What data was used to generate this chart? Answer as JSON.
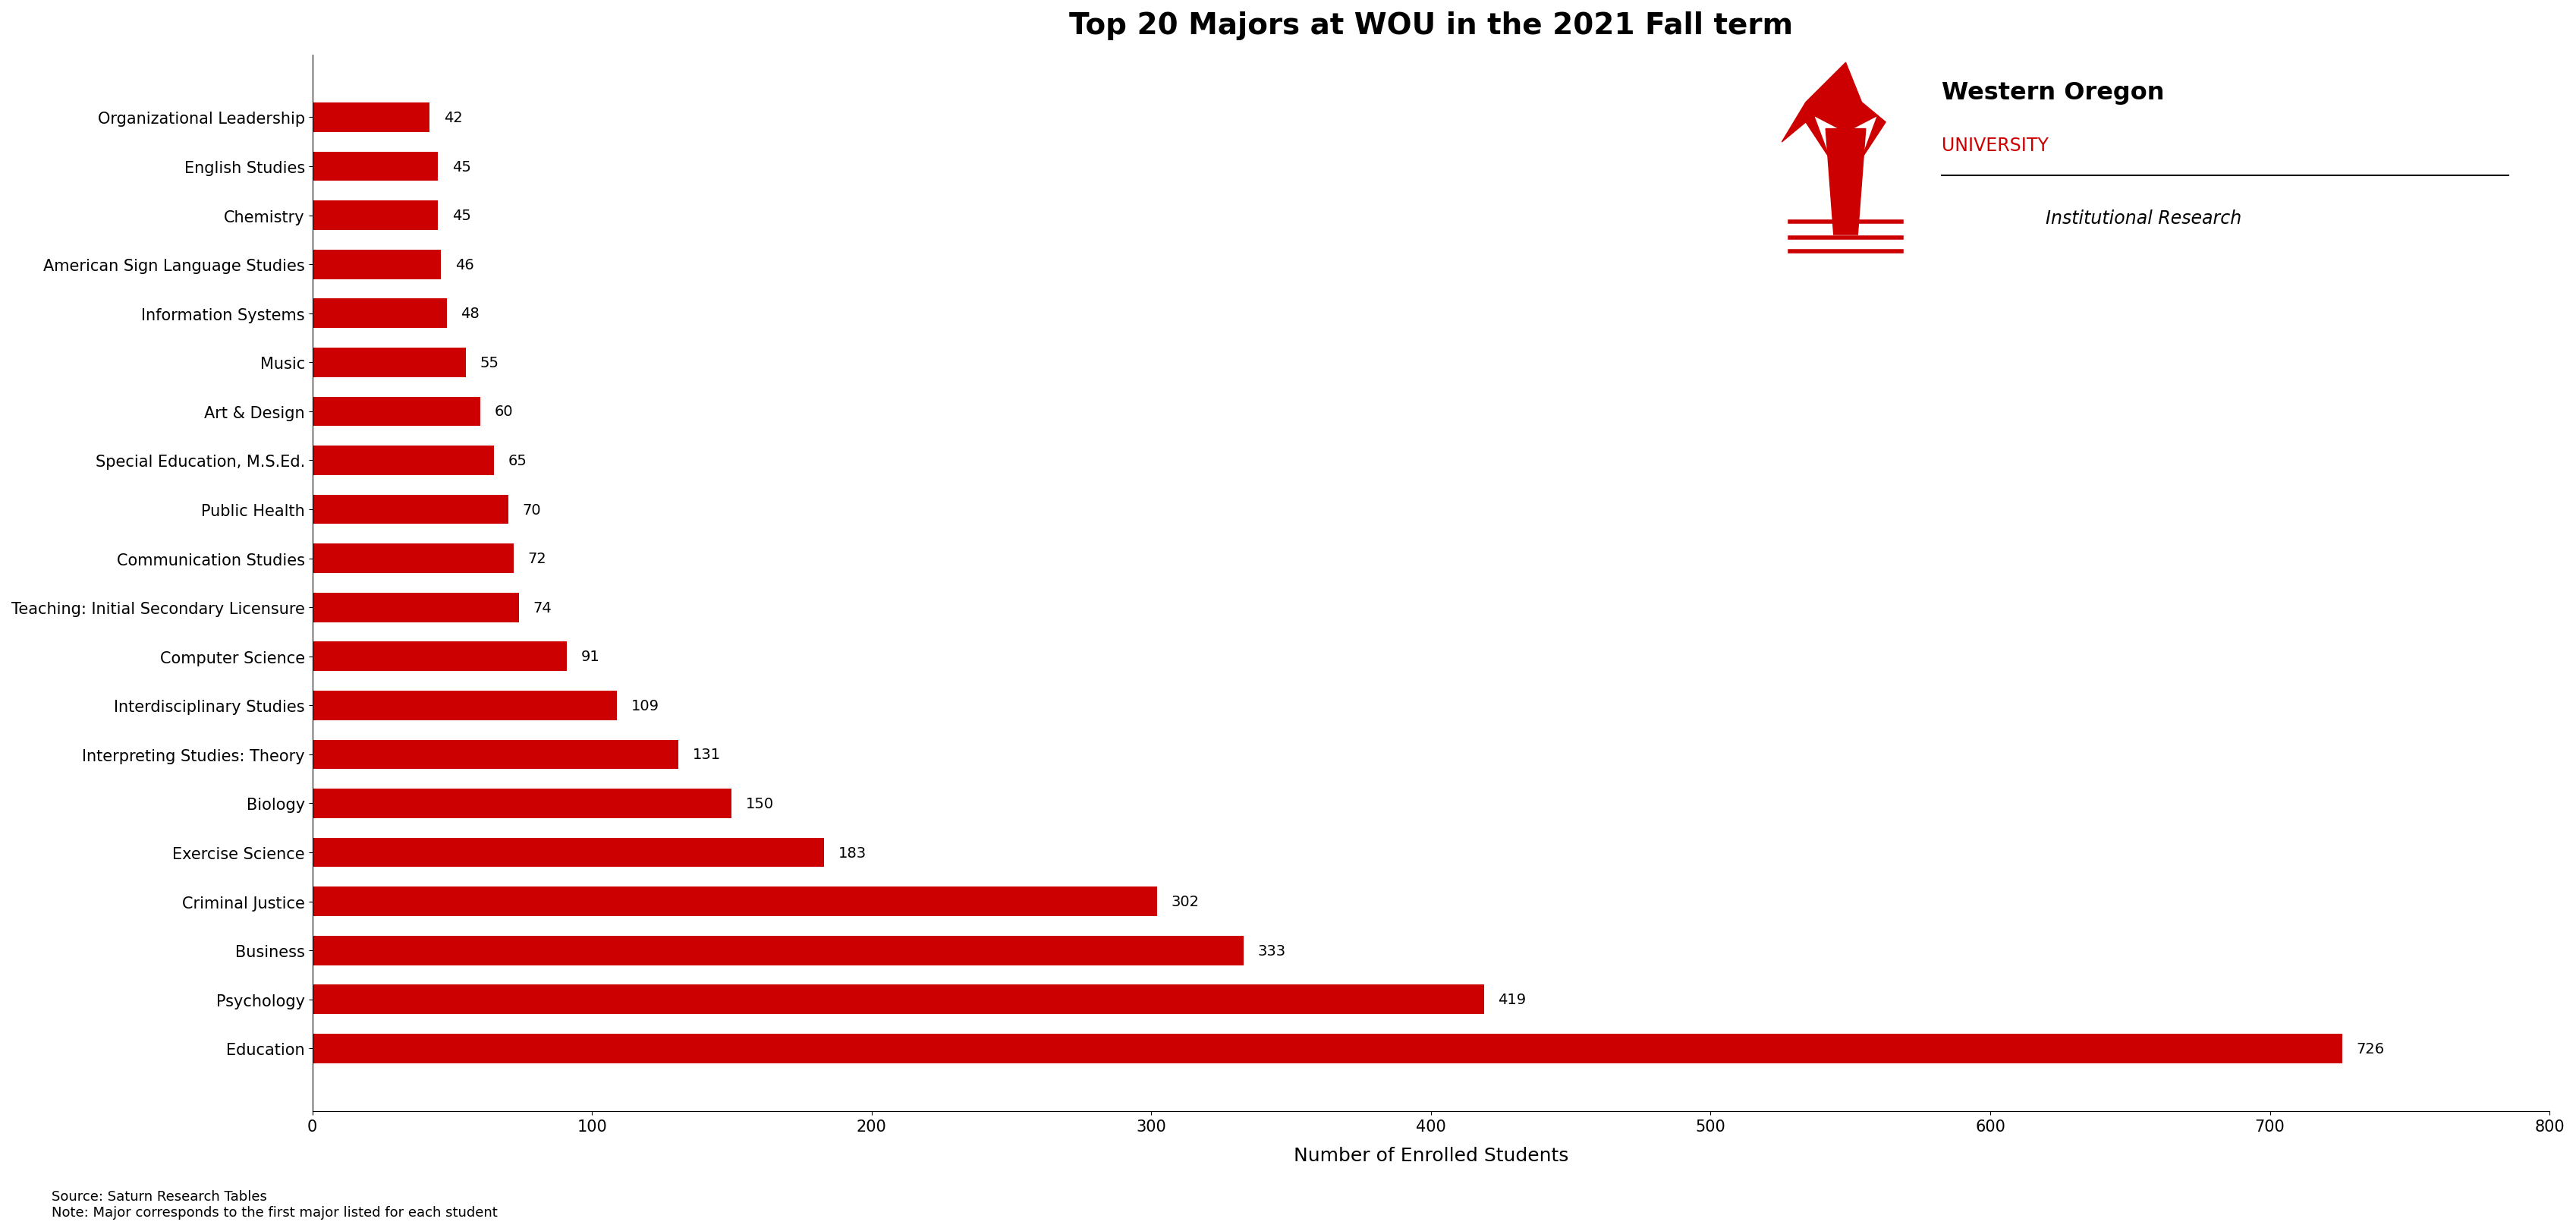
{
  "title": "Top 20 Majors at WOU in the 2021 Fall term",
  "xlabel": "Number of Enrolled Students",
  "source_line1": "Source: Saturn Research Tables",
  "source_line2": "Note: Major corresponds to the first major listed for each student",
  "categories": [
    "Education",
    "Psychology",
    "Business",
    "Criminal Justice",
    "Exercise Science",
    "Biology",
    "Interpreting Studies: Theory",
    "Interdisciplinary Studies",
    "Computer Science",
    "Teaching: Initial Secondary Licensure",
    "Communication Studies",
    "Public Health",
    "Special Education, M.S.Ed.",
    "Art & Design",
    "Music",
    "Information Systems",
    "American Sign Language Studies",
    "Chemistry",
    "English Studies",
    "Organizational Leadership"
  ],
  "values": [
    726,
    419,
    333,
    302,
    183,
    150,
    131,
    109,
    91,
    74,
    72,
    70,
    65,
    60,
    55,
    48,
    46,
    45,
    45,
    42
  ],
  "bar_color": "#CC0000",
  "xlim": [
    0,
    800
  ],
  "xticks": [
    0,
    100,
    200,
    300,
    400,
    500,
    600,
    700,
    800
  ],
  "title_fontsize": 28,
  "label_fontsize": 15,
  "tick_fontsize": 15,
  "value_fontsize": 14,
  "source_fontsize": 13,
  "background_color": "#FFFFFF",
  "wou_text_line1": "Western Oregon",
  "wou_text_line2": "UNIVERSITY",
  "wou_text_line3": "Institutional Research",
  "wou_color": "#CC0000"
}
